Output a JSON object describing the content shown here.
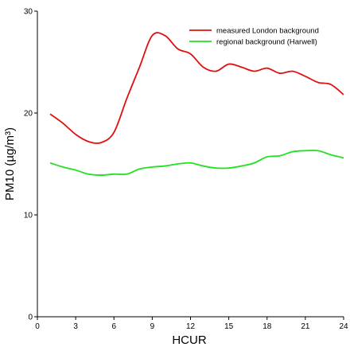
{
  "chart_data": {
    "type": "line",
    "xlabel": "HCUR",
    "ylabel": "PM10 (µg/m³)",
    "xlim": [
      0,
      24
    ],
    "ylim": [
      0,
      30
    ],
    "xticks": [
      0,
      3,
      6,
      9,
      12,
      15,
      18,
      21,
      24
    ],
    "yticks": [
      0,
      10,
      20,
      30
    ],
    "grid": false,
    "legend": "top-right",
    "series": [
      {
        "name": "measured London background",
        "color": "#e01010",
        "x": [
          1,
          2,
          3,
          4,
          5,
          6,
          7,
          8,
          9,
          10,
          11,
          12,
          13,
          14,
          15,
          16,
          17,
          18,
          19,
          20,
          21,
          22,
          23,
          24
        ],
        "values": [
          19.9,
          19.0,
          17.9,
          17.2,
          17.1,
          18.1,
          21.4,
          24.5,
          27.6,
          27.6,
          26.3,
          25.8,
          24.5,
          24.1,
          24.8,
          24.5,
          24.1,
          24.4,
          23.9,
          24.1,
          23.6,
          23.0,
          22.8,
          21.8
        ]
      },
      {
        "name": "regional background (Harwell)",
        "color": "#22e022",
        "x": [
          1,
          2,
          3,
          4,
          5,
          6,
          7,
          8,
          9,
          10,
          11,
          12,
          13,
          14,
          15,
          16,
          17,
          18,
          19,
          20,
          21,
          22,
          23,
          24
        ],
        "values": [
          15.1,
          14.7,
          14.4,
          14.0,
          13.9,
          14.0,
          14.0,
          14.5,
          14.7,
          14.8,
          15.0,
          15.1,
          14.8,
          14.6,
          14.6,
          14.8,
          15.1,
          15.7,
          15.8,
          16.2,
          16.3,
          16.3,
          15.9,
          15.6
        ]
      }
    ]
  }
}
